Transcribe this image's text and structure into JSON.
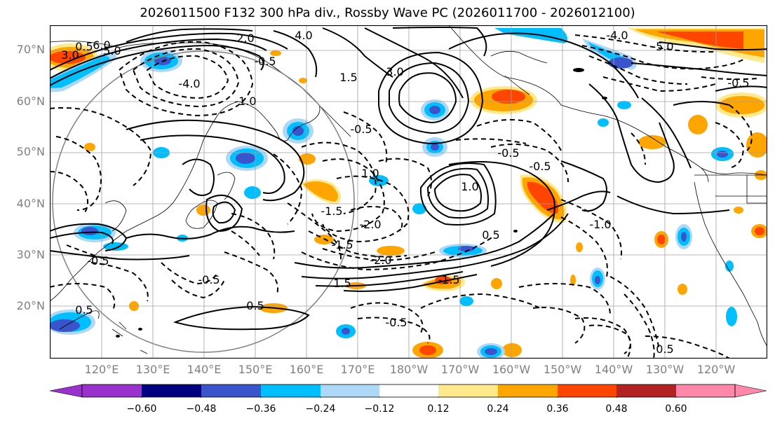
{
  "title": "2026011500 F132 300 hPa div., Rossby Wave PC (2026011700 - 2026012100)",
  "lat_labels": [
    "70°N",
    "60°N",
    "50°N",
    "40°N",
    "30°N",
    "20°N"
  ],
  "lon_labels": [
    "120°E",
    "130°E",
    "140°E",
    "150°E",
    "160°E",
    "170°E",
    "180°W",
    "170°W",
    "160°W",
    "150°W",
    "140°W",
    "130°W",
    "120°W"
  ],
  "contour_labels": [
    "3.0",
    "0.5",
    "6.0",
    "5.0",
    "4.0",
    "2.0",
    "1.0",
    "1.5",
    "-0.5",
    "3.0",
    "-4.0",
    "-1.0",
    "-0.5",
    "-0.5",
    "1.5",
    "-1.5",
    "-2.0",
    "-2.0",
    "-1.5",
    "-1.5",
    "-1.0",
    "0.5",
    "0.5",
    "-0.5",
    "-0.5",
    "-0.5",
    "0.5",
    "0.5",
    "1.0",
    "-0.5",
    "-5.0",
    "-4.0",
    "-0.5"
  ],
  "colorbar": {
    "ticks": [
      "−0.60",
      "−0.48",
      "−0.36",
      "−0.24",
      "−0.12",
      "0.12",
      "0.24",
      "0.36",
      "0.48",
      "0.60"
    ],
    "colors": [
      "#9932cc",
      "#000080",
      "#3a55cc",
      "#00bfff",
      "#add8f7",
      "#ffffff",
      "#ffe98a",
      "#ffa500",
      "#ff4500",
      "#b22222",
      "#ff88aa"
    ]
  },
  "colors": {
    "pos_fill_light": "#ffe98a",
    "pos_fill": "#ffa500",
    "pos_fill_strong": "#ff4500",
    "neg_fill_light": "#add8f7",
    "neg_fill": "#00bfff",
    "neg_fill_strong": "#3a55cc",
    "grid": "#a0a0a0",
    "label_gray": "#808080"
  }
}
